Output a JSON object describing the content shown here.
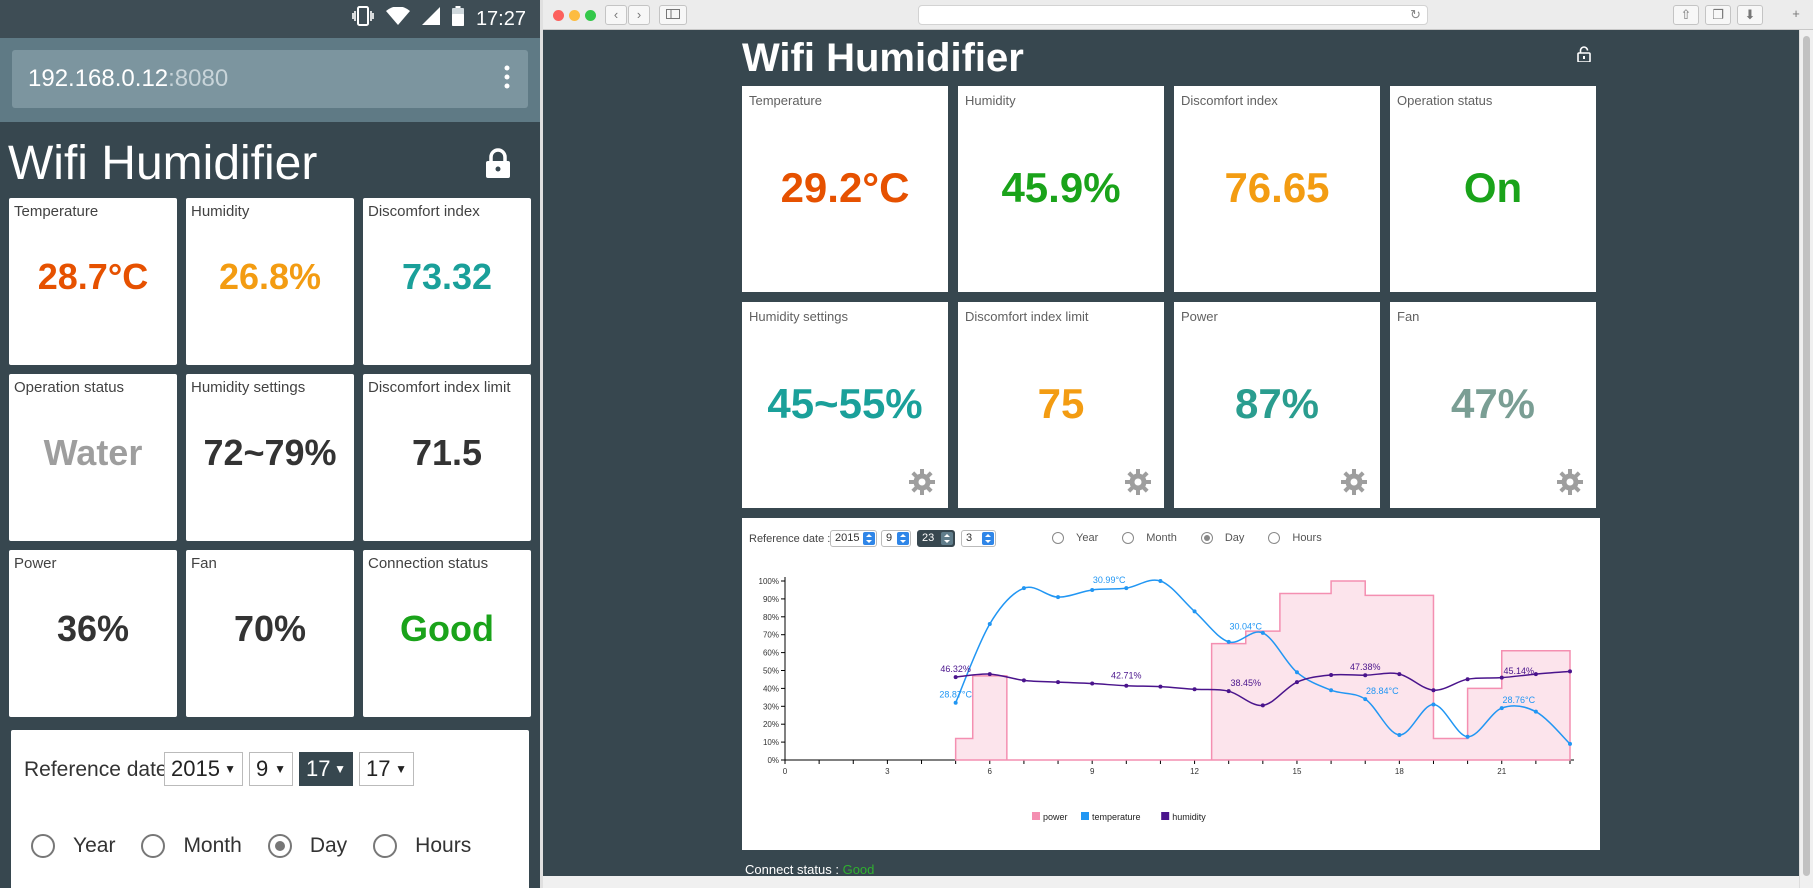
{
  "colors": {
    "orange_red": "#e65100",
    "orange": "#f39c12",
    "green": "#1aa31a",
    "teal": "#1aa09a",
    "teal_dark": "#2a9d8f",
    "gray_teal": "#7a9e94",
    "gray": "#9e9e9e",
    "dark_text": "#333333",
    "power": "#f48fb1",
    "temperature": "#2196f3",
    "humidity": "#4a148c"
  },
  "phone": {
    "status": {
      "time": "17:27",
      "icons": [
        "vibrate-icon",
        "wifi-icon",
        "signal-icon",
        "battery-icon"
      ]
    },
    "url": {
      "host": "192.168.0.12",
      "port": ":8080"
    },
    "title": "Wifi Humidifier",
    "cards": [
      {
        "label": "Temperature",
        "value": "28.7°C",
        "color": "#e65100"
      },
      {
        "label": "Humidity",
        "value": "26.8%",
        "color": "#f39c12"
      },
      {
        "label": "Discomfort index",
        "value": "73.32",
        "color": "#1aa09a"
      },
      {
        "label": "Operation status",
        "value": "Water",
        "color": "#9e9e9e"
      },
      {
        "label": "Humidity settings",
        "value": "72~79%",
        "color": "#333333"
      },
      {
        "label": "Discomfort index limit",
        "value": "71.5",
        "color": "#333333"
      },
      {
        "label": "Power",
        "value": "36%",
        "color": "#333333"
      },
      {
        "label": "Fan",
        "value": "70%",
        "color": "#333333"
      },
      {
        "label": "Connection status",
        "value": "Good",
        "color": "#1aa31a"
      }
    ],
    "reference": {
      "label": "Reference date :",
      "year": "2015",
      "month": "9",
      "day": "17",
      "hour": "17",
      "radios": [
        {
          "label": "Year",
          "checked": false
        },
        {
          "label": "Month",
          "checked": false
        },
        {
          "label": "Day",
          "checked": true
        },
        {
          "label": "Hours",
          "checked": false
        }
      ]
    }
  },
  "desktop": {
    "title": "Wifi Humidifier",
    "cards": [
      {
        "label": "Temperature",
        "value": "29.2°C",
        "color": "#e65100",
        "gear": false
      },
      {
        "label": "Humidity",
        "value": "45.9%",
        "color": "#1aa31a",
        "gear": false
      },
      {
        "label": "Discomfort index",
        "value": "76.65",
        "color": "#f39c12",
        "gear": false
      },
      {
        "label": "Operation status",
        "value": "On",
        "color": "#1aa31a",
        "gear": false
      },
      {
        "label": "Humidity settings",
        "value": "45~55%",
        "color": "#1aa09a",
        "gear": true
      },
      {
        "label": "Discomfort index limit",
        "value": "75",
        "color": "#f39c12",
        "gear": true
      },
      {
        "label": "Power",
        "value": "87%",
        "color": "#2a9d8f",
        "gear": true
      },
      {
        "label": "Fan",
        "value": "47%",
        "color": "#7a9e94",
        "gear": true
      }
    ],
    "reference": {
      "label": "Reference date :",
      "year": "2015",
      "month": "9",
      "day": "23",
      "hour": "3",
      "radios": [
        {
          "label": "Year",
          "checked": false
        },
        {
          "label": "Month",
          "checked": false
        },
        {
          "label": "Day",
          "checked": true
        },
        {
          "label": "Hours",
          "checked": false
        }
      ]
    },
    "connect": {
      "label": "Connect status :",
      "value": "Good"
    }
  },
  "chart_data": {
    "type": "line",
    "xlim": [
      0,
      23
    ],
    "ylim": [
      0,
      100
    ],
    "x_ticks": [
      0,
      3,
      6,
      9,
      12,
      15,
      18,
      21
    ],
    "y_ticks": [
      "0%",
      "10%",
      "20%",
      "30%",
      "40%",
      "50%",
      "60%",
      "70%",
      "80%",
      "90%",
      "100%"
    ],
    "legend_position": "bottom",
    "series": [
      {
        "name": "power",
        "style": "step-area",
        "color": "#f48fb1",
        "x": [
          5,
          5.5,
          6.5,
          12.5,
          13.5,
          14.5,
          16,
          17,
          19,
          20,
          21,
          23
        ],
        "values": [
          12,
          47,
          0,
          65,
          72,
          93,
          100,
          92,
          12,
          40,
          61,
          61
        ]
      },
      {
        "name": "temperature",
        "style": "smooth-line",
        "color": "#2196f3",
        "x": [
          5,
          6,
          7,
          8,
          9,
          10,
          11,
          12,
          13,
          14,
          15,
          16,
          17,
          18,
          19,
          20,
          21,
          22,
          23
        ],
        "values": [
          32,
          76,
          96,
          91,
          95,
          96,
          100,
          83,
          66,
          71,
          49,
          39,
          34,
          14,
          31,
          13,
          29,
          27,
          9
        ]
      },
      {
        "name": "humidity",
        "style": "smooth-line",
        "color": "#4a148c",
        "x": [
          5,
          6,
          7,
          8,
          9,
          10,
          11,
          12,
          13,
          14,
          15,
          16,
          17,
          18,
          19,
          20,
          21,
          22,
          23
        ],
        "values": [
          46.32,
          48,
          44.5,
          43.5,
          42.71,
          41.5,
          41,
          39.5,
          38.45,
          30.5,
          43.5,
          47.5,
          47.38,
          48,
          39,
          45.14,
          46,
          48,
          49.5
        ]
      }
    ],
    "annotations": [
      {
        "series": "temperature",
        "x": 5,
        "y": 32,
        "text": "28.87°C"
      },
      {
        "series": "temperature",
        "x": 9.5,
        "y": 96,
        "text": "30.99°C"
      },
      {
        "series": "temperature",
        "x": 13.5,
        "y": 70,
        "text": "30.04°C"
      },
      {
        "series": "temperature",
        "x": 17.5,
        "y": 34,
        "text": "28.84°C"
      },
      {
        "series": "temperature",
        "x": 21.5,
        "y": 29,
        "text": "28.76°C"
      },
      {
        "series": "humidity",
        "x": 5,
        "y": 46.32,
        "text": "46.32%"
      },
      {
        "series": "humidity",
        "x": 10,
        "y": 42.71,
        "text": "42.71%"
      },
      {
        "series": "humidity",
        "x": 13.5,
        "y": 38.45,
        "text": "38.45%"
      },
      {
        "series": "humidity",
        "x": 17,
        "y": 47.38,
        "text": "47.38%"
      },
      {
        "series": "humidity",
        "x": 21.5,
        "y": 45.14,
        "text": "45.14%"
      }
    ]
  }
}
